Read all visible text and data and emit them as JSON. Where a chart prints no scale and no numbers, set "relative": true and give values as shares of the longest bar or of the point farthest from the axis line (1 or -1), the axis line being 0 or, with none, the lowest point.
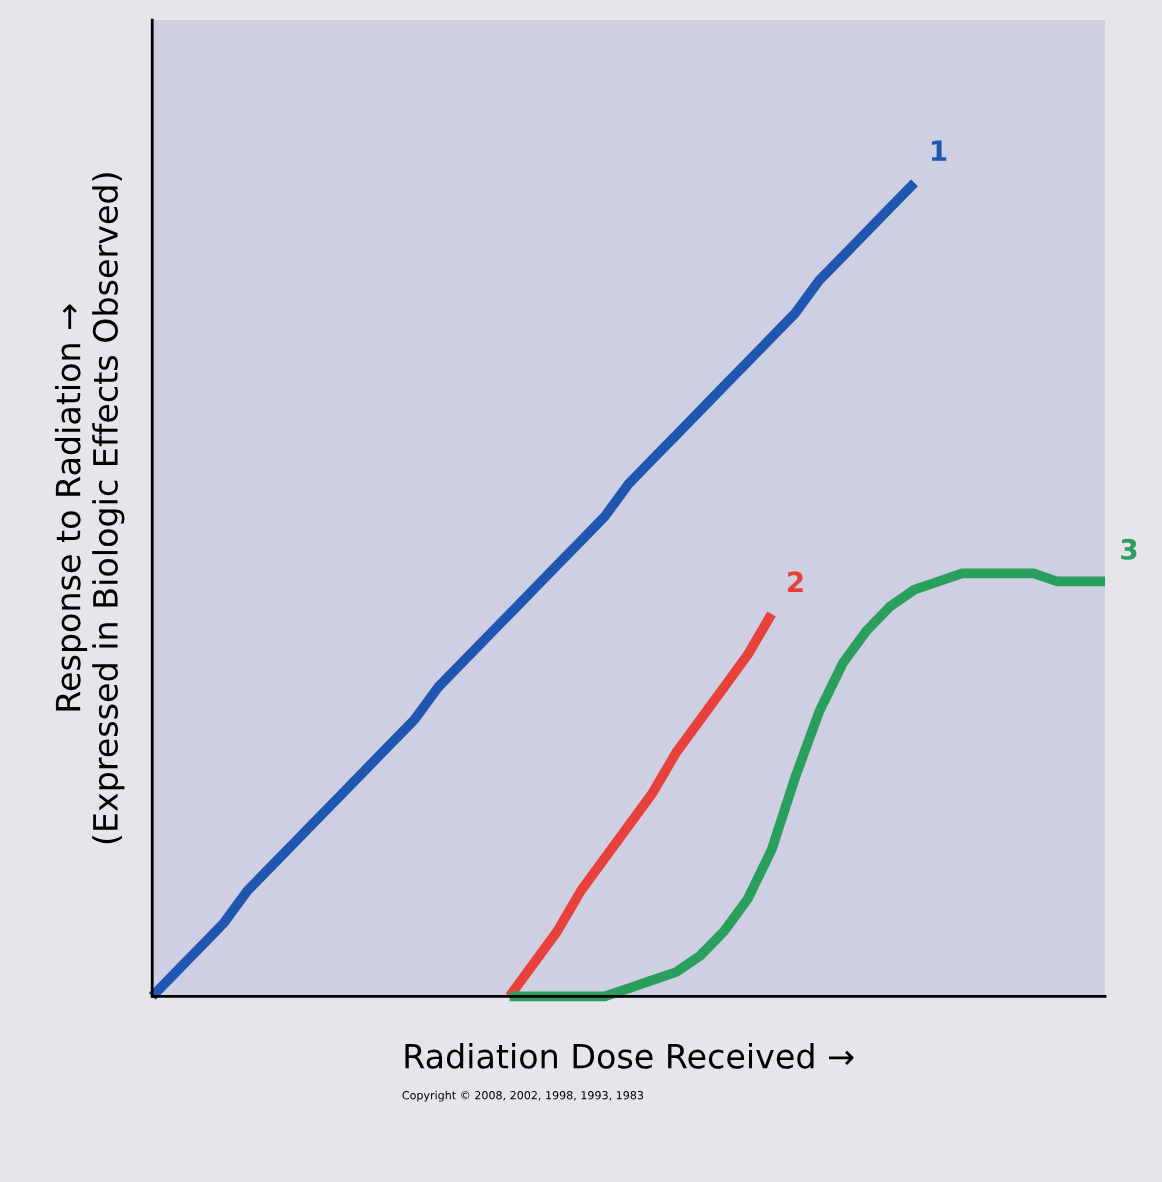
{
  "chart_data": {
    "type": "line",
    "relative": true,
    "xlabel": "Radiation Dose Received →",
    "ylabel": "Response to Radiation →\n(Expressed in Biologic Effects Observed)",
    "categories": [
      null,
      null,
      null,
      null,
      null,
      null,
      null,
      null,
      null,
      null,
      null,
      null,
      null,
      null,
      null,
      null,
      null,
      null,
      null,
      null,
      null,
      null,
      null,
      null,
      null,
      null,
      null,
      null,
      null,
      null,
      null,
      null,
      null,
      null,
      null,
      null,
      null,
      null,
      null,
      null,
      null
    ],
    "series": [
      {
        "name": "1",
        "color": "#1f57b0",
        "values": [
          0,
          0.03,
          0.06,
          0.09,
          0.13,
          0.16,
          0.19,
          0.22,
          0.25,
          0.28,
          0.31,
          0.34,
          0.38,
          0.41,
          0.44,
          0.47,
          0.5,
          0.53,
          0.56,
          0.59,
          0.63,
          0.66,
          0.69,
          0.72,
          0.75,
          0.78,
          0.81,
          0.84,
          0.88,
          0.91,
          0.94,
          0.97,
          1,
          null,
          null,
          null,
          null,
          null,
          null,
          null,
          null
        ]
      },
      {
        "name": "2",
        "color": "#e8403a",
        "values": [
          null,
          null,
          null,
          null,
          null,
          null,
          null,
          null,
          null,
          null,
          null,
          null,
          null,
          null,
          null,
          0,
          0.04,
          0.08,
          0.13,
          0.17,
          0.21,
          0.25,
          0.3,
          0.34,
          0.38,
          0.42,
          0.47,
          null,
          null,
          null,
          null,
          null,
          null,
          null,
          null,
          null,
          null,
          null,
          null,
          null,
          null
        ]
      },
      {
        "name": "3",
        "color": "#2a9e5c",
        "values": [
          null,
          null,
          null,
          null,
          null,
          null,
          null,
          null,
          null,
          null,
          null,
          null,
          null,
          null,
          null,
          0,
          0,
          0,
          0,
          0,
          0.01,
          0.02,
          0.03,
          0.05,
          0.08,
          0.12,
          0.18,
          0.27,
          0.35,
          0.41,
          0.45,
          0.48,
          0.5,
          0.51,
          0.52,
          0.52,
          0.52,
          0.52,
          0.51,
          0.51,
          0.51
        ]
      }
    ],
    "legend": false,
    "grid": false,
    "marker": "none",
    "line_style": "solid",
    "annotations": [
      "Copyright © 2008, 2002, 1998, 1993, 1983"
    ]
  }
}
